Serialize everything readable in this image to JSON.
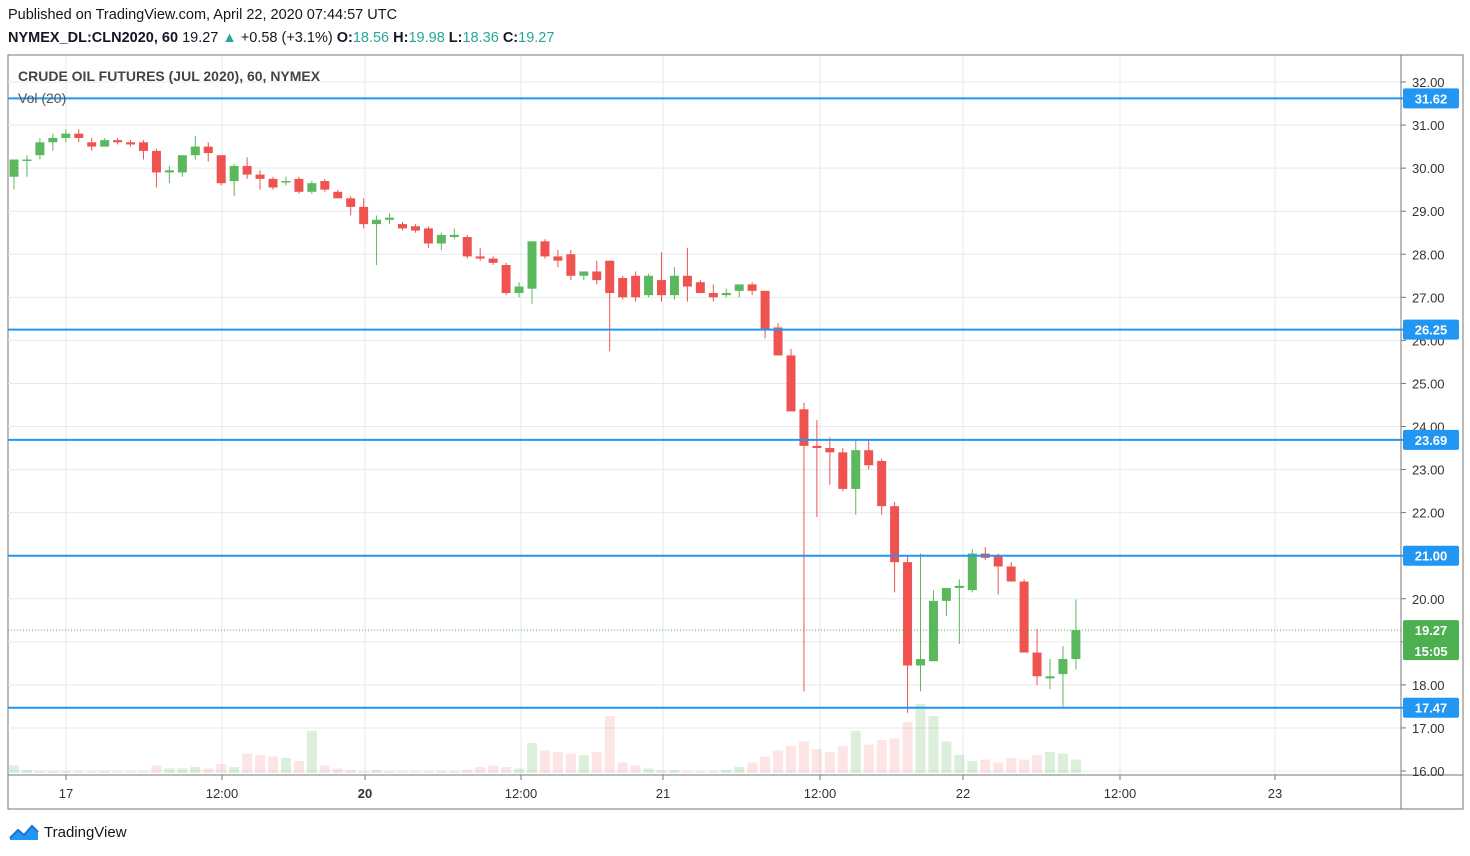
{
  "header": {
    "published": "Published on TradingView.com, April 22, 2020 07:44:57 UTC",
    "symbol": "NYMEX_DL:CLN2020, 60",
    "last": "19.27",
    "change_arrow": "▲",
    "change": "+0.58 (+3.1%)",
    "o_label": "O:",
    "o": "18.56",
    "h_label": "H:",
    "h": "19.98",
    "l_label": "L:",
    "l": "18.36",
    "c_label": "C:",
    "c": "19.27"
  },
  "footer": {
    "brand": "TradingView",
    "logo_icon": "tradingview-logo-icon"
  },
  "colors": {
    "up": "#26a69a",
    "candle_up": "#5cb85c",
    "candle_down": "#ef5350",
    "hline": "#2196f3",
    "grid": "#e6e9ef",
    "last_price": "#4caf50"
  },
  "chart_data": {
    "type": "candlestick",
    "title": "CRUDE OIL FUTURES (JUL 2020), 60, NYMEX",
    "volume_label": "Vol (20)",
    "ylim": [
      15.9,
      32.35
    ],
    "y_ticks": [
      "16.00",
      "17.00",
      "18.00",
      "19.00",
      "20.00",
      "21.00",
      "22.00",
      "23.00",
      "24.00",
      "25.00",
      "26.00",
      "27.00",
      "28.00",
      "29.00",
      "30.00",
      "31.00",
      "32.00"
    ],
    "x_ticks": [
      {
        "label": "17",
        "bold": false
      },
      {
        "label": "12:00",
        "bold": false
      },
      {
        "label": "20",
        "bold": true
      },
      {
        "label": "12:00",
        "bold": false
      },
      {
        "label": "21",
        "bold": false
      },
      {
        "label": "12:00",
        "bold": false
      },
      {
        "label": "22",
        "bold": false
      },
      {
        "label": "12:00",
        "bold": false
      },
      {
        "label": "23",
        "bold": false
      }
    ],
    "horizontal_levels": [
      "31.62",
      "26.25",
      "23.69",
      "21.00",
      "17.47"
    ],
    "last_price": "19.27",
    "countdown": "15:05",
    "candles": [
      [
        29.8,
        30.2,
        29.5,
        30.2
      ],
      [
        30.2,
        30.3,
        29.8,
        30.2
      ],
      [
        30.3,
        30.7,
        30.2,
        30.6
      ],
      [
        30.6,
        30.8,
        30.4,
        30.7
      ],
      [
        30.7,
        30.9,
        30.6,
        30.8
      ],
      [
        30.8,
        30.9,
        30.6,
        30.7
      ],
      [
        30.6,
        30.7,
        30.4,
        30.5
      ],
      [
        30.5,
        30.7,
        30.5,
        30.65
      ],
      [
        30.65,
        30.7,
        30.55,
        30.6
      ],
      [
        30.6,
        30.65,
        30.5,
        30.55
      ],
      [
        30.6,
        30.65,
        30.2,
        30.4
      ],
      [
        30.4,
        30.45,
        29.55,
        29.9
      ],
      [
        29.9,
        30.05,
        29.65,
        29.95
      ],
      [
        29.9,
        30.3,
        29.8,
        30.3
      ],
      [
        30.3,
        30.75,
        30.2,
        30.5
      ],
      [
        30.5,
        30.6,
        30.15,
        30.35
      ],
      [
        30.3,
        30.3,
        29.6,
        29.65
      ],
      [
        29.7,
        30.1,
        29.35,
        30.05
      ],
      [
        30.05,
        30.25,
        29.75,
        29.85
      ],
      [
        29.85,
        29.95,
        29.5,
        29.75
      ],
      [
        29.75,
        29.8,
        29.5,
        29.55
      ],
      [
        29.7,
        29.8,
        29.6,
        29.7
      ],
      [
        29.75,
        29.8,
        29.4,
        29.45
      ],
      [
        29.45,
        29.7,
        29.4,
        29.65
      ],
      [
        29.7,
        29.75,
        29.45,
        29.5
      ],
      [
        29.45,
        29.5,
        29.3,
        29.3
      ],
      [
        29.3,
        29.35,
        28.9,
        29.1
      ],
      [
        29.1,
        29.3,
        28.6,
        28.7
      ],
      [
        28.7,
        28.9,
        27.75,
        28.8
      ],
      [
        28.8,
        28.95,
        28.7,
        28.85
      ],
      [
        28.7,
        28.75,
        28.55,
        28.6
      ],
      [
        28.65,
        28.7,
        28.5,
        28.55
      ],
      [
        28.6,
        28.65,
        28.15,
        28.25
      ],
      [
        28.25,
        28.5,
        28.1,
        28.45
      ],
      [
        28.4,
        28.6,
        28.35,
        28.45
      ],
      [
        28.4,
        28.45,
        27.9,
        27.95
      ],
      [
        27.95,
        28.15,
        27.85,
        27.9
      ],
      [
        27.9,
        27.95,
        27.75,
        27.8
      ],
      [
        27.75,
        27.8,
        27.05,
        27.1
      ],
      [
        27.1,
        27.35,
        27.0,
        27.25
      ],
      [
        27.2,
        28.3,
        26.85,
        28.3
      ],
      [
        28.3,
        28.35,
        27.9,
        27.95
      ],
      [
        27.95,
        28.1,
        27.7,
        27.85
      ],
      [
        28.0,
        28.1,
        27.4,
        27.5
      ],
      [
        27.5,
        27.6,
        27.4,
        27.6
      ],
      [
        27.6,
        27.85,
        27.3,
        27.4
      ],
      [
        27.85,
        27.85,
        25.75,
        27.1
      ],
      [
        27.45,
        27.5,
        26.95,
        27.0
      ],
      [
        27.5,
        27.6,
        26.9,
        27.0
      ],
      [
        27.05,
        27.55,
        27.0,
        27.5
      ],
      [
        27.4,
        28.05,
        26.9,
        27.05
      ],
      [
        27.05,
        27.7,
        26.95,
        27.5
      ],
      [
        27.5,
        28.15,
        26.9,
        27.25
      ],
      [
        27.35,
        27.4,
        27.1,
        27.1
      ],
      [
        27.1,
        27.3,
        26.9,
        27.0
      ],
      [
        27.05,
        27.2,
        27.0,
        27.1
      ],
      [
        27.15,
        27.3,
        27.0,
        27.3
      ],
      [
        27.3,
        27.35,
        27.05,
        27.15
      ],
      [
        27.15,
        27.15,
        26.05,
        26.25
      ],
      [
        26.3,
        26.4,
        25.65,
        25.65
      ],
      [
        25.65,
        25.8,
        24.35,
        24.35
      ],
      [
        24.4,
        24.55,
        17.85,
        23.55
      ],
      [
        23.55,
        24.15,
        21.9,
        23.5
      ],
      [
        23.5,
        23.75,
        22.65,
        23.4
      ],
      [
        23.4,
        23.5,
        22.5,
        22.55
      ],
      [
        22.55,
        23.7,
        21.95,
        23.45
      ],
      [
        23.45,
        23.7,
        23.0,
        23.1
      ],
      [
        23.2,
        23.25,
        21.95,
        22.15
      ],
      [
        22.15,
        22.25,
        20.15,
        20.85
      ],
      [
        20.85,
        21.0,
        17.35,
        18.45
      ],
      [
        18.45,
        21.05,
        17.85,
        18.6
      ],
      [
        18.55,
        20.2,
        18.55,
        19.95
      ],
      [
        19.95,
        20.1,
        19.6,
        20.25
      ],
      [
        20.25,
        20.45,
        18.95,
        20.3
      ],
      [
        20.2,
        21.15,
        20.15,
        21.05
      ],
      [
        21.05,
        21.2,
        20.9,
        20.95
      ],
      [
        21.0,
        21.05,
        20.1,
        20.75
      ],
      [
        20.75,
        20.85,
        20.5,
        20.4
      ],
      [
        20.4,
        20.45,
        18.85,
        18.75
      ],
      [
        18.75,
        19.3,
        18.0,
        18.2
      ],
      [
        18.15,
        18.6,
        17.9,
        18.2
      ],
      [
        18.25,
        18.9,
        17.5,
        18.6
      ],
      [
        18.6,
        19.98,
        18.36,
        19.27
      ]
    ],
    "volumes": [
      5,
      2,
      1,
      1,
      1,
      1,
      1,
      1,
      1,
      1,
      1,
      5,
      3,
      3,
      4,
      3,
      6,
      4,
      13,
      12,
      11,
      10,
      8,
      28,
      5,
      3,
      2,
      1,
      2,
      1,
      1,
      1,
      1,
      1,
      1,
      2,
      4,
      5,
      4,
      3,
      20,
      15,
      14,
      13,
      12,
      14,
      38,
      7,
      5,
      3,
      2,
      2,
      1,
      1,
      1,
      2,
      4,
      7,
      11,
      15,
      18,
      21,
      16,
      14,
      18,
      28,
      19,
      22,
      23,
      34,
      46,
      38,
      21,
      12,
      8,
      9,
      7,
      10,
      9,
      12,
      14,
      13,
      9
    ]
  }
}
